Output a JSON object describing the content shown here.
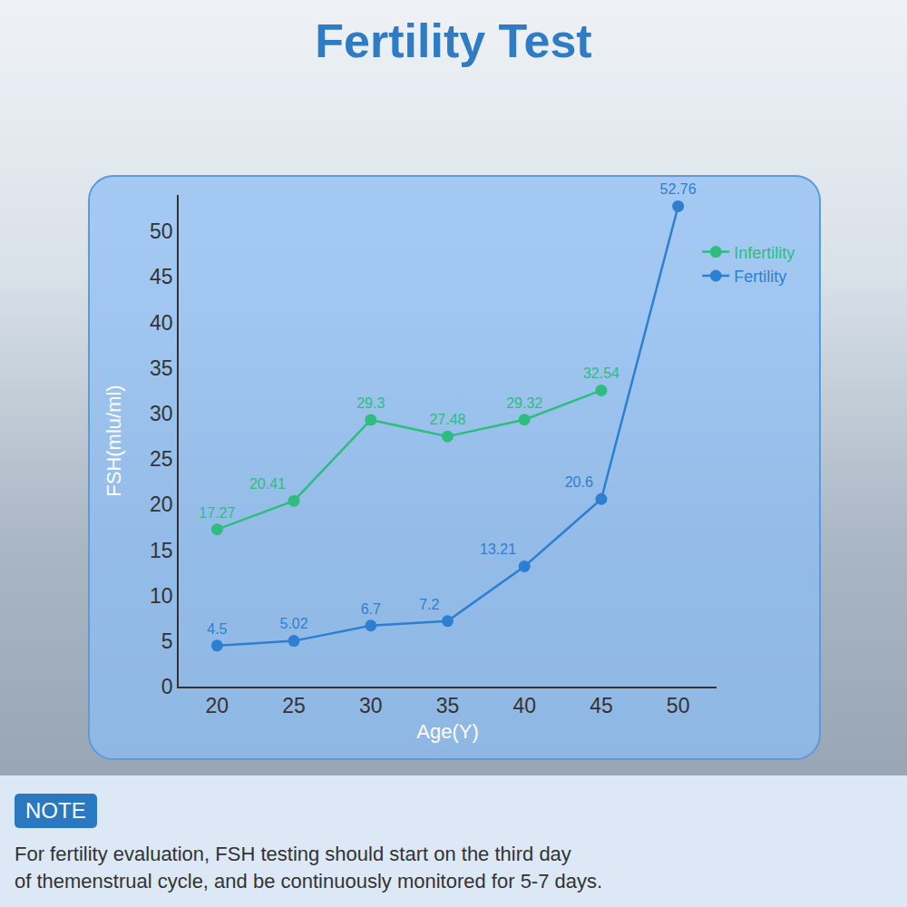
{
  "chart_data": {
    "type": "line",
    "title": "Fertility Test",
    "x": [
      20,
      25,
      30,
      35,
      40,
      45,
      50
    ],
    "series": [
      {
        "name": "Infertility",
        "color": "#2ebd7f",
        "values": [
          17.27,
          20.41,
          29.3,
          27.48,
          29.32,
          32.54,
          null
        ]
      },
      {
        "name": "Fertility",
        "color": "#2d7fd1",
        "values": [
          4.5,
          5.02,
          6.7,
          7.2,
          13.21,
          20.6,
          52.76
        ]
      }
    ],
    "x_label": "Age(Y)",
    "y_label": "FSH(mlu/ml)",
    "xlim": [
      17.5,
      52.5
    ],
    "xticks": [
      20,
      25,
      30,
      35,
      40,
      45,
      50
    ],
    "ylim": [
      0,
      54
    ],
    "yticks": [
      0,
      5,
      10,
      15,
      20,
      25,
      30,
      35,
      40,
      45,
      50
    ],
    "grid": false,
    "legend": "top right",
    "data_labels": true,
    "marker": "circle"
  },
  "note": {
    "label": "NOTE",
    "lines": [
      "For fertility evaluation, FSH testing should start on the third day",
      "of themenstrual cycle, and be continuously monitored for 5-7 days."
    ]
  }
}
